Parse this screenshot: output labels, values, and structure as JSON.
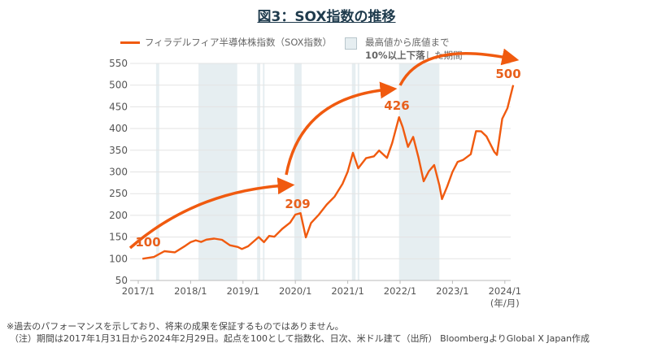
{
  "title": "図3：SOX指数の推移",
  "legend": {
    "series": "フィラデルフィア半導体株指数（SOX指数）",
    "shade_line1": "最高値から底値まで",
    "shade_line2_bold": "10%以上下落",
    "shade_line2_rest": "した期間"
  },
  "notes": [
    "※過去のパフォーマンスを示しており、将来の成果を保証するものではありません。",
    "（注）期間は2017年1月31日から2024年2月29日。起点を100として指数化、日次、米ドル建て（出所） BloombergよりGlobal X Japan作成"
  ],
  "colors": {
    "line": "#f05a0f",
    "shade": "#e6eef1",
    "label": "#e8601c"
  },
  "chart_data": {
    "type": "line",
    "title": "図3：SOX指数の推移",
    "xlabel": "(年/月)",
    "ylabel": "",
    "ylim": [
      50,
      550
    ],
    "yticks": [
      50,
      100,
      150,
      200,
      250,
      300,
      350,
      400,
      450,
      500,
      550
    ],
    "xticks": [
      2017,
      2018,
      2019,
      2020,
      2021,
      2022,
      2023,
      2024
    ],
    "xtick_labels": [
      "2017/1",
      "2018/1",
      "2019/1",
      "2020/1",
      "2021/1",
      "2022/1",
      "2023/1",
      "2024/1"
    ],
    "shaded_periods": [
      [
        2017.34,
        2017.4
      ],
      [
        2018.15,
        2018.89
      ],
      [
        2019.27,
        2019.33
      ],
      [
        2019.38,
        2019.41
      ],
      [
        2019.98,
        2020.12
      ],
      [
        2021.08,
        2021.15
      ],
      [
        2021.19,
        2021.22
      ],
      [
        2021.98,
        2022.75
      ]
    ],
    "series": [
      {
        "name": "フィラデルフィア半導体株指数（SOX指数）",
        "x": [
          2017.08,
          2017.3,
          2017.5,
          2017.7,
          2017.9,
          2018.0,
          2018.1,
          2018.2,
          2018.3,
          2018.45,
          2018.6,
          2018.75,
          2018.9,
          2018.98,
          2019.1,
          2019.3,
          2019.4,
          2019.5,
          2019.6,
          2019.75,
          2019.9,
          2020.0,
          2020.1,
          2020.2,
          2020.3,
          2020.45,
          2020.6,
          2020.75,
          2020.9,
          2021.0,
          2021.1,
          2021.2,
          2021.35,
          2021.5,
          2021.6,
          2021.75,
          2021.85,
          2021.98,
          2022.05,
          2022.15,
          2022.25,
          2022.35,
          2022.45,
          2022.55,
          2022.65,
          2022.75,
          2022.8,
          2022.9,
          2023.0,
          2023.1,
          2023.2,
          2023.35,
          2023.45,
          2023.55,
          2023.65,
          2023.8,
          2023.85,
          2023.95,
          2024.05,
          2024.16
        ],
        "y": [
          100,
          105,
          115,
          118,
          130,
          135,
          145,
          138,
          140,
          148,
          142,
          135,
          128,
          120,
          132,
          150,
          135,
          155,
          150,
          165,
          185,
          200,
          209,
          150,
          180,
          205,
          225,
          240,
          275,
          300,
          340,
          310,
          330,
          340,
          350,
          330,
          370,
          426,
          400,
          360,
          380,
          330,
          280,
          300,
          320,
          270,
          235,
          270,
          300,
          320,
          330,
          340,
          390,
          395,
          380,
          350,
          340,
          420,
          450,
          500
        ]
      }
    ],
    "annotations": [
      {
        "text": "100",
        "x": 2017.08,
        "y": 100
      },
      {
        "text": "209",
        "x": 2020.1,
        "y": 209
      },
      {
        "text": "426",
        "x": 2021.98,
        "y": 426
      },
      {
        "text": "500",
        "x": 2024.16,
        "y": 500
      }
    ]
  }
}
